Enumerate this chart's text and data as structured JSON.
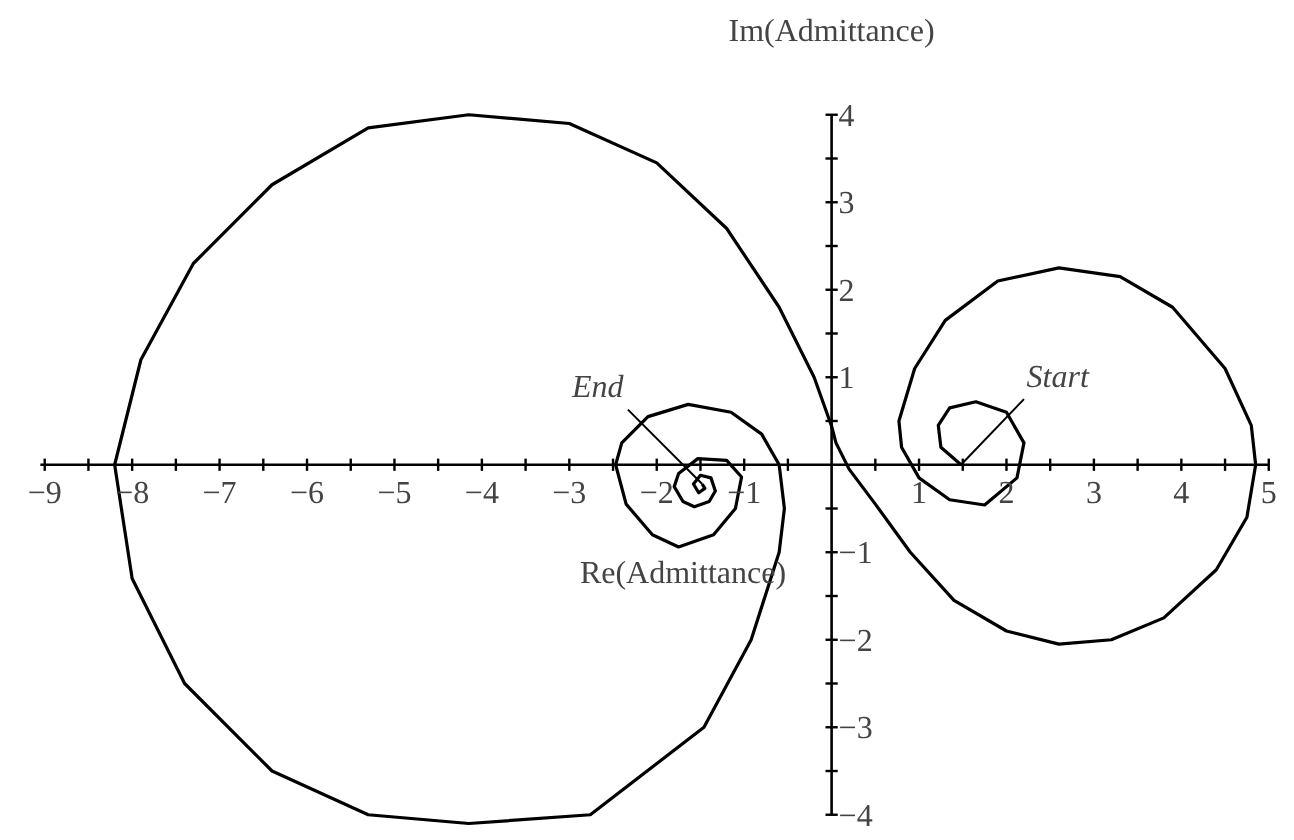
{
  "chart_data": {
    "type": "line",
    "xlabel": "Re(Admittance)",
    "ylabel": "Im(Admittance)",
    "xlim": [
      -9.5,
      5.3
    ],
    "ylim": [
      -4.3,
      5.3
    ],
    "xticks": [
      {
        "value": -9,
        "label": "−9"
      },
      {
        "value": -8.5,
        "label": null
      },
      {
        "value": -8,
        "label": "−8"
      },
      {
        "value": -7.5,
        "label": null
      },
      {
        "value": -7,
        "label": "−7"
      },
      {
        "value": -6.5,
        "label": null
      },
      {
        "value": -6,
        "label": "−6"
      },
      {
        "value": -5.5,
        "label": null
      },
      {
        "value": -5,
        "label": "−5"
      },
      {
        "value": -4.5,
        "label": null
      },
      {
        "value": -4,
        "label": "−4"
      },
      {
        "value": -3.5,
        "label": null
      },
      {
        "value": -3,
        "label": "−3"
      },
      {
        "value": -2.5,
        "label": null
      },
      {
        "value": -2,
        "label": "−2"
      },
      {
        "value": -1.5,
        "label": null
      },
      {
        "value": -1,
        "label": "−1"
      },
      {
        "value": -0.5,
        "label": null
      },
      {
        "value": 0.5,
        "label": null
      },
      {
        "value": 1,
        "label": "1"
      },
      {
        "value": 1.5,
        "label": null
      },
      {
        "value": 2,
        "label": "2"
      },
      {
        "value": 2.5,
        "label": null
      },
      {
        "value": 3,
        "label": "3"
      },
      {
        "value": 3.5,
        "label": null
      },
      {
        "value": 4,
        "label": "4"
      },
      {
        "value": 4.5,
        "label": null
      },
      {
        "value": 5,
        "label": "5"
      }
    ],
    "yticks": [
      {
        "value": -4,
        "label": "−4"
      },
      {
        "value": -3.5,
        "label": null
      },
      {
        "value": -3,
        "label": "−3"
      },
      {
        "value": -2.5,
        "label": null
      },
      {
        "value": -2,
        "label": "−2"
      },
      {
        "value": -1.5,
        "label": null
      },
      {
        "value": -1,
        "label": "−1"
      },
      {
        "value": -0.5,
        "label": null
      },
      {
        "value": 0.5,
        "label": null
      },
      {
        "value": 1,
        "label": "1"
      },
      {
        "value": 1.5,
        "label": null
      },
      {
        "value": 2,
        "label": "2"
      },
      {
        "value": 2.5,
        "label": null
      },
      {
        "value": 3,
        "label": "3"
      },
      {
        "value": 3.5,
        "label": null
      },
      {
        "value": 4,
        "label": "4"
      }
    ],
    "grid": false,
    "marker": "none",
    "line_style": "solid",
    "series": [
      {
        "color": "#000000",
        "x": [
          1.48,
          1.25,
          1.22,
          1.35,
          1.65,
          2.0,
          2.2,
          2.12,
          1.75,
          1.35,
          1.0,
          0.8,
          0.77,
          0.95,
          1.3,
          1.9,
          2.6,
          3.3,
          3.9,
          4.5,
          4.8,
          4.85,
          4.75,
          4.4,
          3.8,
          3.2,
          2.6,
          2.0,
          1.4,
          0.9,
          0.5,
          0.2,
          0.05,
          0.0,
          -0.2,
          -0.6,
          -1.2,
          -2.0,
          -3.0,
          -4.15,
          -5.3,
          -6.4,
          -7.3,
          -7.9,
          -8.2,
          -8.0,
          -7.4,
          -6.4,
          -5.3,
          -4.15,
          -2.76,
          -1.46,
          -0.92,
          -0.6,
          -0.54,
          -0.6,
          -0.8,
          -1.15,
          -1.64,
          -2.1,
          -2.4,
          -2.47,
          -2.35,
          -2.05,
          -1.75,
          -1.35,
          -1.1,
          -1.03,
          -1.2,
          -1.53,
          -1.75,
          -1.8,
          -1.7,
          -1.57,
          -1.4,
          -1.33,
          -1.38,
          -1.5,
          -1.58,
          -1.52,
          -1.45,
          -1.48
        ],
        "values": [
          0.0,
          0.2,
          0.45,
          0.65,
          0.72,
          0.6,
          0.25,
          -0.15,
          -0.46,
          -0.4,
          -0.15,
          0.2,
          0.5,
          1.1,
          1.65,
          2.1,
          2.25,
          2.15,
          1.8,
          1.1,
          0.45,
          0.0,
          -0.6,
          -1.2,
          -1.75,
          -2.0,
          -2.05,
          -1.9,
          -1.55,
          -1.0,
          -0.45,
          -0.05,
          0.25,
          0.44,
          1.0,
          1.8,
          2.7,
          3.45,
          3.9,
          4.0,
          3.85,
          3.2,
          2.3,
          1.2,
          0.0,
          -1.3,
          -2.5,
          -3.5,
          -4.0,
          -4.1,
          -4.0,
          -3.0,
          -2.0,
          -1.0,
          -0.5,
          0.0,
          0.35,
          0.6,
          0.69,
          0.55,
          0.25,
          0.0,
          -0.45,
          -0.8,
          -0.94,
          -0.8,
          -0.5,
          -0.14,
          0.05,
          0.07,
          -0.1,
          -0.25,
          -0.42,
          -0.48,
          -0.42,
          -0.3,
          -0.15,
          -0.12,
          -0.22,
          -0.32,
          -0.27,
          -0.22
        ]
      }
    ],
    "annotations": [
      {
        "text": "Start",
        "x": 1.48,
        "y": 0.0
      },
      {
        "text": "End",
        "x": -1.48,
        "y": -0.22
      }
    ]
  }
}
